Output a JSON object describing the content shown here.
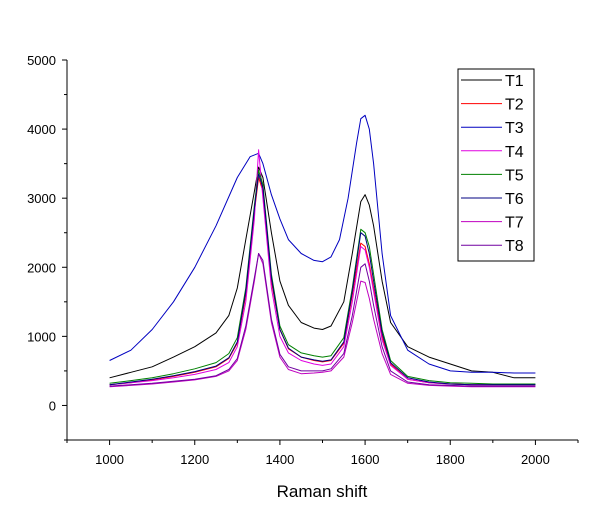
{
  "chart_data": {
    "type": "line",
    "title": "",
    "xlabel": "Raman shift",
    "ylabel": "",
    "xlim": [
      900,
      2100
    ],
    "ylim": [
      -500,
      5000
    ],
    "xticks": [
      1000,
      1200,
      1400,
      1600,
      1800,
      2000
    ],
    "yticks": [
      0,
      1000,
      2000,
      3000,
      4000,
      5000
    ],
    "grid": false,
    "legend_position": "top-right",
    "series": [
      {
        "name": "T1",
        "color": "#000000",
        "x": [
          1000,
          1050,
          1100,
          1150,
          1200,
          1250,
          1280,
          1300,
          1320,
          1340,
          1350,
          1360,
          1380,
          1400,
          1420,
          1450,
          1480,
          1500,
          1520,
          1550,
          1570,
          1590,
          1600,
          1610,
          1620,
          1640,
          1660,
          1700,
          1750,
          1800,
          1850,
          1900,
          1950,
          2000
        ],
        "y": [
          400,
          480,
          560,
          700,
          850,
          1050,
          1300,
          1700,
          2400,
          3100,
          3450,
          3300,
          2500,
          1800,
          1450,
          1200,
          1120,
          1100,
          1150,
          1500,
          2200,
          2950,
          3050,
          2900,
          2600,
          1800,
          1200,
          850,
          700,
          600,
          500,
          480,
          400,
          400
        ]
      },
      {
        "name": "T2",
        "color": "#ff0000",
        "x": [
          1000,
          1050,
          1100,
          1150,
          1200,
          1250,
          1280,
          1300,
          1320,
          1340,
          1350,
          1360,
          1380,
          1400,
          1420,
          1450,
          1480,
          1500,
          1520,
          1550,
          1570,
          1590,
          1600,
          1610,
          1620,
          1640,
          1660,
          1700,
          1750,
          1800,
          1850,
          1900,
          1950,
          2000
        ],
        "y": [
          300,
          330,
          370,
          420,
          480,
          560,
          680,
          900,
          1600,
          2800,
          3300,
          3100,
          1800,
          1100,
          820,
          700,
          650,
          630,
          650,
          900,
          1600,
          2350,
          2300,
          2050,
          1700,
          1000,
          600,
          380,
          330,
          310,
          300,
          300,
          300,
          300
        ]
      },
      {
        "name": "T3",
        "color": "#0000c0",
        "x": [
          1000,
          1050,
          1100,
          1150,
          1200,
          1250,
          1300,
          1330,
          1350,
          1360,
          1380,
          1400,
          1420,
          1450,
          1480,
          1500,
          1520,
          1540,
          1560,
          1580,
          1590,
          1600,
          1610,
          1620,
          1640,
          1660,
          1700,
          1750,
          1800,
          1850,
          1900,
          1950,
          2000
        ],
        "y": [
          650,
          800,
          1100,
          1500,
          2000,
          2600,
          3300,
          3600,
          3650,
          3500,
          3050,
          2700,
          2400,
          2200,
          2100,
          2080,
          2150,
          2400,
          3000,
          3800,
          4150,
          4200,
          4000,
          3500,
          2200,
          1300,
          800,
          600,
          500,
          480,
          480,
          470,
          470
        ]
      },
      {
        "name": "T4",
        "color": "#e000e0",
        "x": [
          1000,
          1050,
          1100,
          1150,
          1200,
          1250,
          1280,
          1300,
          1320,
          1340,
          1350,
          1360,
          1380,
          1400,
          1420,
          1450,
          1480,
          1500,
          1520,
          1550,
          1570,
          1590,
          1600,
          1610,
          1620,
          1640,
          1660,
          1700,
          1750,
          1800,
          1850,
          1900,
          1950,
          2000
        ],
        "y": [
          300,
          330,
          360,
          400,
          450,
          520,
          620,
          850,
          1500,
          2700,
          3700,
          3000,
          1700,
          1000,
          760,
          650,
          600,
          580,
          600,
          850,
          1500,
          2300,
          2250,
          2000,
          1650,
          950,
          580,
          380,
          330,
          310,
          300,
          300,
          300,
          300
        ]
      },
      {
        "name": "T5",
        "color": "#008000",
        "x": [
          1000,
          1050,
          1100,
          1150,
          1200,
          1250,
          1280,
          1300,
          1320,
          1340,
          1350,
          1360,
          1380,
          1400,
          1420,
          1450,
          1480,
          1500,
          1520,
          1550,
          1570,
          1590,
          1600,
          1610,
          1620,
          1640,
          1660,
          1700,
          1750,
          1800,
          1850,
          1900,
          1950,
          2000
        ],
        "y": [
          320,
          360,
          400,
          460,
          530,
          620,
          750,
          980,
          1700,
          2900,
          3400,
          3200,
          1900,
          1150,
          880,
          760,
          720,
          700,
          720,
          980,
          1700,
          2550,
          2500,
          2300,
          1900,
          1100,
          650,
          420,
          360,
          330,
          320,
          310,
          310,
          310
        ]
      },
      {
        "name": "T6",
        "color": "#000080",
        "x": [
          1000,
          1050,
          1100,
          1150,
          1200,
          1250,
          1280,
          1300,
          1320,
          1340,
          1350,
          1360,
          1380,
          1400,
          1420,
          1450,
          1480,
          1500,
          1520,
          1550,
          1570,
          1590,
          1600,
          1610,
          1620,
          1640,
          1660,
          1700,
          1750,
          1800,
          1850,
          1900,
          1950,
          2000
        ],
        "y": [
          300,
          340,
          380,
          430,
          490,
          570,
          690,
          920,
          1650,
          2850,
          3350,
          3150,
          1850,
          1100,
          830,
          700,
          660,
          640,
          660,
          920,
          1650,
          2500,
          2450,
          2200,
          1800,
          1050,
          620,
          400,
          340,
          310,
          300,
          300,
          300,
          300
        ]
      },
      {
        "name": "T7",
        "color": "#c000c0",
        "x": [
          1000,
          1050,
          1100,
          1150,
          1200,
          1250,
          1280,
          1300,
          1320,
          1340,
          1350,
          1360,
          1380,
          1400,
          1420,
          1450,
          1480,
          1500,
          1520,
          1550,
          1570,
          1590,
          1600,
          1610,
          1620,
          1640,
          1660,
          1700,
          1750,
          1800,
          1850,
          1900,
          1950,
          2000
        ],
        "y": [
          270,
          290,
          310,
          340,
          370,
          420,
          500,
          650,
          1100,
          1800,
          2200,
          2050,
          1200,
          700,
          520,
          460,
          470,
          480,
          500,
          700,
          1200,
          1800,
          1780,
          1550,
          1250,
          750,
          450,
          320,
          290,
          280,
          270,
          270,
          270,
          270
        ]
      },
      {
        "name": "T8",
        "color": "#7000a0",
        "x": [
          1000,
          1050,
          1100,
          1150,
          1200,
          1250,
          1280,
          1300,
          1320,
          1340,
          1350,
          1360,
          1380,
          1400,
          1420,
          1450,
          1480,
          1500,
          1520,
          1550,
          1570,
          1590,
          1600,
          1610,
          1620,
          1640,
          1660,
          1700,
          1750,
          1800,
          1850,
          1900,
          1950,
          2000
        ],
        "y": [
          280,
          300,
          320,
          350,
          380,
          430,
          520,
          680,
          1150,
          1850,
          2200,
          2100,
          1250,
          740,
          560,
          500,
          500,
          500,
          530,
          750,
          1300,
          2000,
          2050,
          1800,
          1450,
          850,
          500,
          340,
          300,
          290,
          280,
          280,
          280,
          280
        ]
      }
    ]
  }
}
